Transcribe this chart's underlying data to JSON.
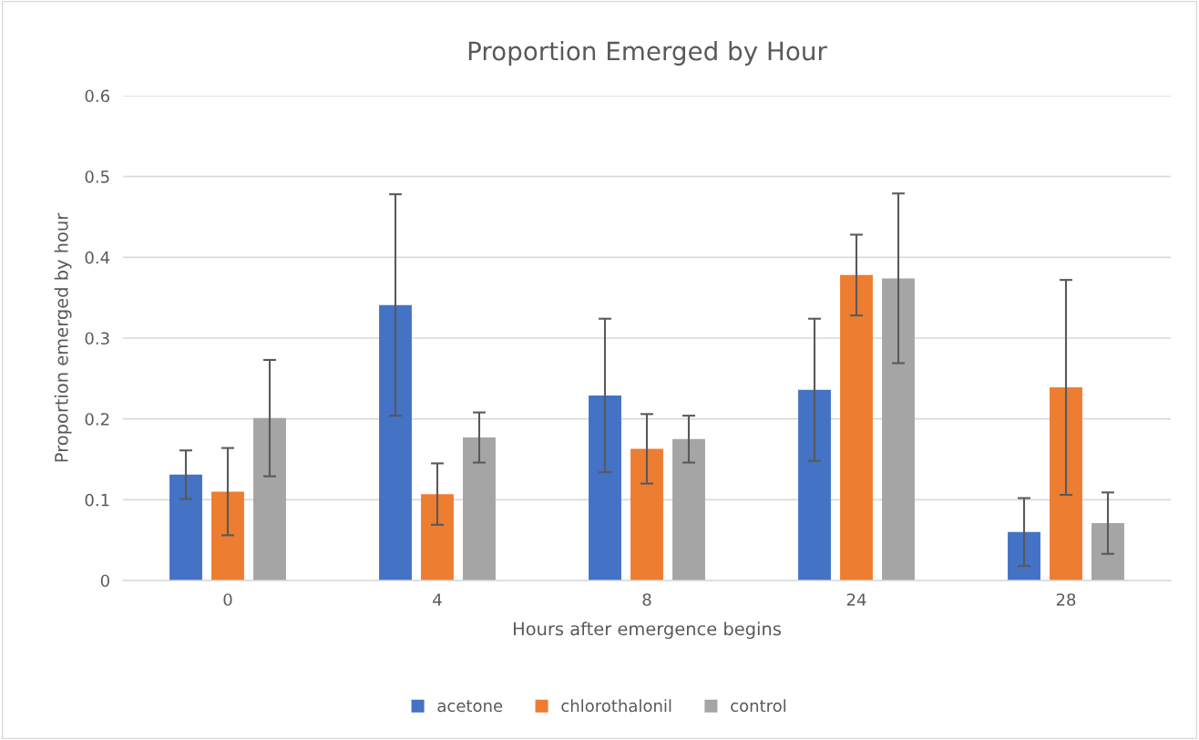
{
  "chart_data": {
    "type": "bar",
    "title": "Proportion Emerged by Hour",
    "xlabel": "Hours after emergence begins",
    "ylabel": "Proportion emerged by hour",
    "categories": [
      "0",
      "4",
      "8",
      "24",
      "28"
    ],
    "series": [
      {
        "name": "acetone",
        "color": "#4472c4",
        "values": [
          0.131,
          0.341,
          0.229,
          0.236,
          0.06
        ],
        "errors": [
          0.03,
          0.137,
          0.095,
          0.088,
          0.042
        ]
      },
      {
        "name": "chlorothalonil",
        "color": "#ed7d31",
        "values": [
          0.11,
          0.107,
          0.163,
          0.378,
          0.239
        ],
        "errors": [
          0.054,
          0.038,
          0.043,
          0.05,
          0.133
        ]
      },
      {
        "name": "control",
        "color": "#a5a5a5",
        "values": [
          0.201,
          0.177,
          0.175,
          0.374,
          0.071
        ],
        "errors": [
          0.072,
          0.031,
          0.029,
          0.105,
          0.038
        ]
      }
    ],
    "ylim": [
      0,
      0.6
    ],
    "yticks": [
      0,
      0.1,
      0.2,
      0.3,
      0.4,
      0.5,
      0.6
    ],
    "grid": "y",
    "legend": "bottom"
  }
}
